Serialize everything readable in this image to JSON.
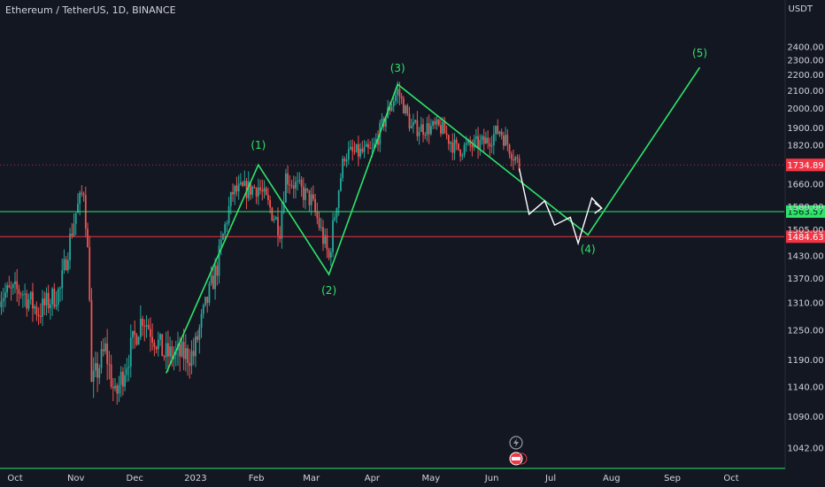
{
  "header": {
    "title": "Ethereum / TetherUS, 1D, BINANCE",
    "currency": "USDT"
  },
  "chart_data": {
    "type": "candlestick",
    "y_axis_ticks": [
      2400,
      2300,
      2200,
      2100,
      2000,
      1900,
      1820,
      1734.89,
      1660,
      1580,
      1505,
      1430,
      1370,
      1310,
      1250,
      1190,
      1140,
      1090,
      1042
    ],
    "y_axis_tick_labels": [
      "2400.00",
      "2300.00",
      "2200.00",
      "2100.00",
      "2000.00",
      "1900.00",
      "1820.00",
      "1734.89",
      "1660.00",
      "1580.00",
      "1505.00",
      "1430.00",
      "1370.00",
      "1310.00",
      "1250.00",
      "1190.00",
      "1140.00",
      "1090.00",
      "1042.00"
    ],
    "x_axis_ticks": [
      "Oct",
      "Nov",
      "Dec",
      "2023",
      "Feb",
      "Mar",
      "Apr",
      "May",
      "Jun",
      "Jul",
      "Aug",
      "Sep",
      "Oct"
    ],
    "price_levels": [
      {
        "label": "1734.89",
        "value": 1734.89,
        "color": "#f23645",
        "style": "dotted"
      },
      {
        "label": "1563.57",
        "value": 1563.57,
        "color": "#2ee56a",
        "style": "solid"
      },
      {
        "label": "1484.63",
        "value": 1484.63,
        "color": "#f23645",
        "style": "solid"
      }
    ],
    "wave_labels": [
      "(1)",
      "(2)",
      "(3)",
      "(4)",
      "(5)"
    ],
    "wave_path": [
      {
        "date": "2022-12-17",
        "price": 1165
      },
      {
        "date": "2023-02-02",
        "price": 1735
      },
      {
        "date": "2023-03-10",
        "price": 1380
      },
      {
        "date": "2023-04-14",
        "price": 2140
      },
      {
        "date": "2023-07-20",
        "price": 1490
      },
      {
        "date": "2023-09-15",
        "price": 2250
      }
    ],
    "projection_path": [
      {
        "date": "2023-06-15",
        "price": 1720
      },
      {
        "date": "2023-06-20",
        "price": 1555
      },
      {
        "date": "2023-06-28",
        "price": 1600
      },
      {
        "date": "2023-07-03",
        "price": 1520
      },
      {
        "date": "2023-07-11",
        "price": 1545
      },
      {
        "date": "2023-07-15",
        "price": 1465
      },
      {
        "date": "2023-07-22",
        "price": 1610
      },
      {
        "date": "2023-07-27",
        "price": 1575
      }
    ],
    "series": [
      {
        "name": "ETHUSDT",
        "anchors": [
          {
            "date": "2022-09-23",
            "price": 1330
          },
          {
            "date": "2022-10-04",
            "price": 1340
          },
          {
            "date": "2022-10-13",
            "price": 1290
          },
          {
            "date": "2022-10-24",
            "price": 1340
          },
          {
            "date": "2022-11-01",
            "price": 1560
          },
          {
            "date": "2022-11-05",
            "price": 1640
          },
          {
            "date": "2022-11-08",
            "price": 1340
          },
          {
            "date": "2022-11-09",
            "price": 1140
          },
          {
            "date": "2022-11-16",
            "price": 1210
          },
          {
            "date": "2022-11-21",
            "price": 1120
          },
          {
            "date": "2022-12-05",
            "price": 1280
          },
          {
            "date": "2022-12-16",
            "price": 1200
          },
          {
            "date": "2022-12-31",
            "price": 1200
          },
          {
            "date": "2023-01-12",
            "price": 1400
          },
          {
            "date": "2023-01-20",
            "price": 1630
          },
          {
            "date": "2023-02-02",
            "price": 1650
          },
          {
            "date": "2023-02-13",
            "price": 1510
          },
          {
            "date": "2023-02-16",
            "price": 1690
          },
          {
            "date": "2023-03-01",
            "price": 1600
          },
          {
            "date": "2023-03-10",
            "price": 1420
          },
          {
            "date": "2023-03-18",
            "price": 1780
          },
          {
            "date": "2023-04-01",
            "price": 1790
          },
          {
            "date": "2023-04-14",
            "price": 2100
          },
          {
            "date": "2023-04-21",
            "price": 1900
          },
          {
            "date": "2023-05-06",
            "price": 1900
          },
          {
            "date": "2023-05-14",
            "price": 1800
          },
          {
            "date": "2023-05-28",
            "price": 1830
          },
          {
            "date": "2023-06-05",
            "price": 1890
          },
          {
            "date": "2023-06-15",
            "price": 1730
          }
        ]
      }
    ],
    "colors": {
      "up": "#26a69a",
      "down": "#ef5350",
      "wave": "#2ee56a",
      "projection": "#ffffff",
      "background": "#131722"
    },
    "grid": false
  }
}
